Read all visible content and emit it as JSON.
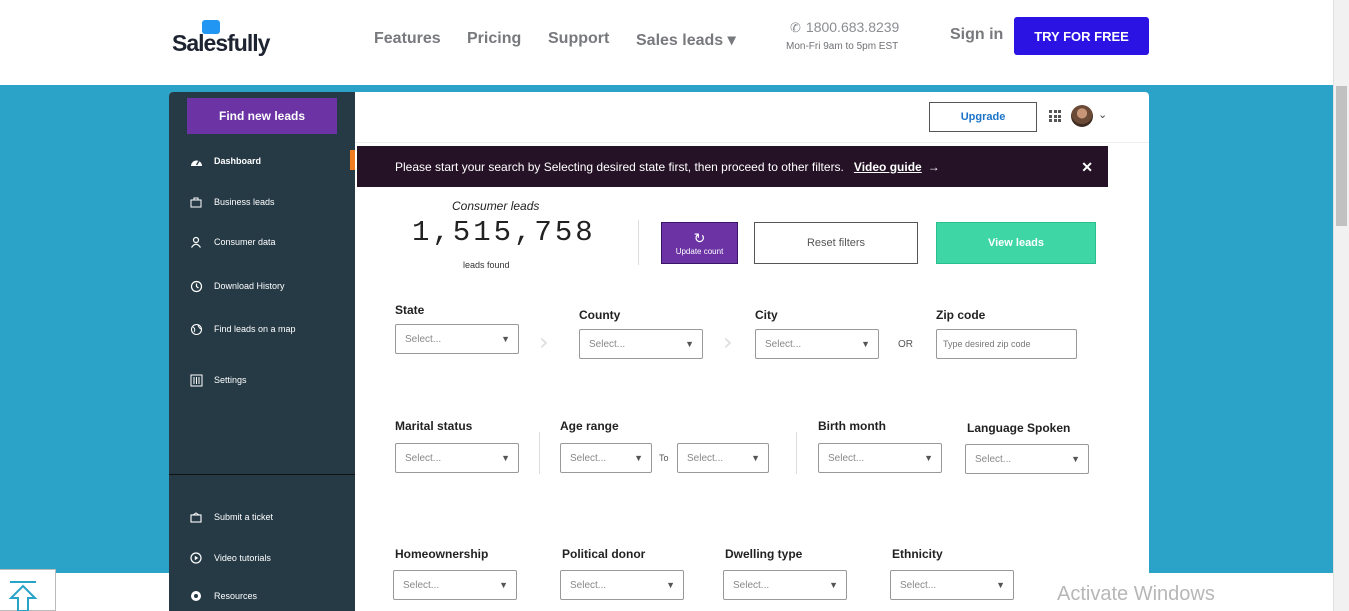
{
  "nav": {
    "logo_text": "Salesfully",
    "links": [
      "Features",
      "Pricing",
      "Support",
      "Sales leads ▾"
    ],
    "phone": "1800.683.8239",
    "phone_hours": "Mon-Fri 9am to 5pm EST",
    "signin": "Sign in",
    "try_free": "TRY FOR FREE"
  },
  "sidebar": {
    "find_new_leads": "Find new leads",
    "items": [
      {
        "label": "Dashboard",
        "icon": "dashboard-icon"
      },
      {
        "label": "Business leads",
        "icon": "briefcase-icon"
      },
      {
        "label": "Consumer data",
        "icon": "user-icon"
      },
      {
        "label": "Download History",
        "icon": "history-icon"
      },
      {
        "label": "Find leads on a map",
        "icon": "globe-icon"
      },
      {
        "label": "Settings",
        "icon": "settings-icon"
      }
    ],
    "bottom_items": [
      {
        "label": "Submit a ticket",
        "icon": "ticket-icon"
      },
      {
        "label": "Video tutorials",
        "icon": "play-icon"
      },
      {
        "label": "Resources",
        "icon": "resources-icon"
      }
    ]
  },
  "header": {
    "upgrade": "Upgrade"
  },
  "banner": {
    "text": "Please start your search by Selecting desired state first, then proceed to other filters.",
    "link": "Video guide",
    "arrow": "→",
    "close": "✕"
  },
  "summary": {
    "title": "Consumer leads",
    "count": "1,515,758",
    "found_label": "leads found",
    "update_count": "Update count",
    "update_icon": "↻",
    "reset_filters": "Reset filters",
    "view_leads": "View leads"
  },
  "filters": {
    "placeholder": "Select...",
    "state": "State",
    "county": "County",
    "city": "City",
    "or_label": "OR",
    "zip": "Zip code",
    "zip_placeholder": "Type desired zip code",
    "marital": "Marital status",
    "age": "Age range",
    "to_label": "To",
    "birth_month": "Birth month",
    "language": "Language Spoken",
    "homeownership": "Homeownership",
    "political": "Political donor",
    "dwelling": "Dwelling type",
    "ethnicity": "Ethnicity"
  },
  "watermark": "Activate Windows",
  "colors": {
    "accent_purple": "#6b33a4",
    "cta_blue": "#2b13e3",
    "band_blue": "#2ba3c8",
    "view_green": "#3ed6a4",
    "sidebar_bg": "#263a46"
  }
}
